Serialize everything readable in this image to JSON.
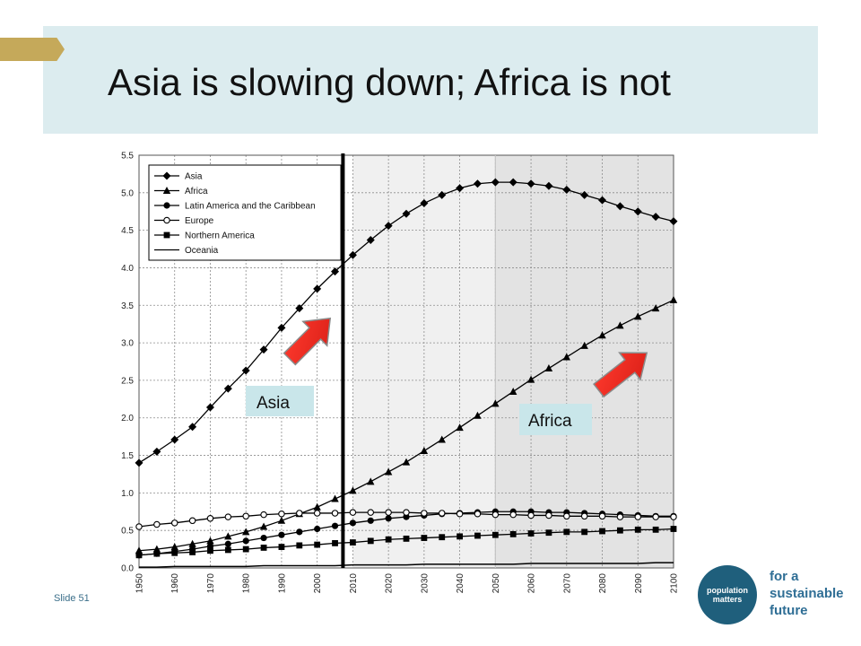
{
  "slide": {
    "title": "Asia is slowing down; Africa is not",
    "number_label": "Slide 51",
    "accent_color": "#c5a95a",
    "band_color": "#dcecef"
  },
  "logo": {
    "circle_line1": "population",
    "circle_line2": "matters",
    "tagline1": "for a",
    "tagline2": "sustainable",
    "tagline3": "future",
    "color": "#1f5f7c"
  },
  "callouts": {
    "asia_label": "Asia",
    "africa_label": "Africa",
    "arrow_color": "#ee2e24"
  },
  "chart_data": {
    "type": "line",
    "ylim": [
      0,
      5.5
    ],
    "xlim": [
      1950,
      2100
    ],
    "yticks": [
      "0.0",
      "0.5",
      "1.0",
      "1.5",
      "2.0",
      "2.5",
      "3.0",
      "3.5",
      "4.0",
      "4.5",
      "5.0",
      "5.5"
    ],
    "xticks": [
      "1950",
      "1960",
      "1970",
      "1980",
      "1990",
      "2000",
      "2010",
      "2020",
      "2030",
      "2040",
      "2050",
      "2060",
      "2070",
      "2080",
      "2090",
      "2100"
    ],
    "grid": true,
    "legend_position": "top-left",
    "shaded_regions": [
      {
        "from": 2010,
        "to": 2050,
        "color": "#f0f0f0"
      },
      {
        "from": 2050,
        "to": 2100,
        "color": "#e3e3e3"
      }
    ],
    "vertical_line": 2010,
    "x": [
      1950,
      1955,
      1960,
      1965,
      1970,
      1975,
      1980,
      1985,
      1990,
      1995,
      2000,
      2005,
      2010,
      2015,
      2020,
      2025,
      2030,
      2035,
      2040,
      2045,
      2050,
      2055,
      2060,
      2065,
      2070,
      2075,
      2080,
      2085,
      2090,
      2095,
      2100
    ],
    "series": [
      {
        "name": "Asia",
        "marker": "diamond",
        "values": [
          1.4,
          1.55,
          1.71,
          1.88,
          2.14,
          2.39,
          2.63,
          2.91,
          3.2,
          3.46,
          3.72,
          3.95,
          4.17,
          4.37,
          4.56,
          4.72,
          4.86,
          4.97,
          5.06,
          5.12,
          5.14,
          5.14,
          5.12,
          5.09,
          5.04,
          4.97,
          4.9,
          4.82,
          4.75,
          4.68,
          4.62
        ]
      },
      {
        "name": "Africa",
        "marker": "triangle",
        "values": [
          0.23,
          0.25,
          0.28,
          0.32,
          0.36,
          0.42,
          0.48,
          0.55,
          0.63,
          0.72,
          0.81,
          0.92,
          1.03,
          1.15,
          1.28,
          1.41,
          1.56,
          1.71,
          1.87,
          2.03,
          2.19,
          2.35,
          2.51,
          2.66,
          2.81,
          2.96,
          3.1,
          3.23,
          3.35,
          3.46,
          3.57
        ]
      },
      {
        "name": "Latin America and the Caribbean",
        "marker": "circle",
        "values": [
          0.17,
          0.19,
          0.22,
          0.25,
          0.29,
          0.32,
          0.36,
          0.4,
          0.44,
          0.48,
          0.52,
          0.56,
          0.6,
          0.63,
          0.66,
          0.68,
          0.7,
          0.72,
          0.73,
          0.74,
          0.75,
          0.75,
          0.75,
          0.74,
          0.74,
          0.73,
          0.72,
          0.71,
          0.7,
          0.69,
          0.69
        ]
      },
      {
        "name": "Europe",
        "marker": "open-circle",
        "values": [
          0.55,
          0.58,
          0.6,
          0.63,
          0.66,
          0.68,
          0.69,
          0.71,
          0.72,
          0.73,
          0.73,
          0.73,
          0.74,
          0.74,
          0.74,
          0.74,
          0.73,
          0.73,
          0.72,
          0.72,
          0.71,
          0.71,
          0.7,
          0.7,
          0.69,
          0.69,
          0.69,
          0.68,
          0.68,
          0.68,
          0.68
        ]
      },
      {
        "name": "Northern America",
        "marker": "square",
        "values": [
          0.17,
          0.19,
          0.2,
          0.21,
          0.23,
          0.24,
          0.25,
          0.27,
          0.28,
          0.3,
          0.31,
          0.33,
          0.34,
          0.36,
          0.38,
          0.39,
          0.4,
          0.41,
          0.42,
          0.43,
          0.44,
          0.45,
          0.46,
          0.47,
          0.48,
          0.48,
          0.49,
          0.5,
          0.51,
          0.51,
          0.52
        ]
      },
      {
        "name": "Oceania",
        "marker": "none",
        "values": [
          0.01,
          0.01,
          0.02,
          0.02,
          0.02,
          0.02,
          0.02,
          0.03,
          0.03,
          0.03,
          0.03,
          0.03,
          0.04,
          0.04,
          0.04,
          0.04,
          0.05,
          0.05,
          0.05,
          0.05,
          0.05,
          0.05,
          0.06,
          0.06,
          0.06,
          0.06,
          0.06,
          0.06,
          0.06,
          0.07,
          0.07
        ]
      }
    ]
  }
}
